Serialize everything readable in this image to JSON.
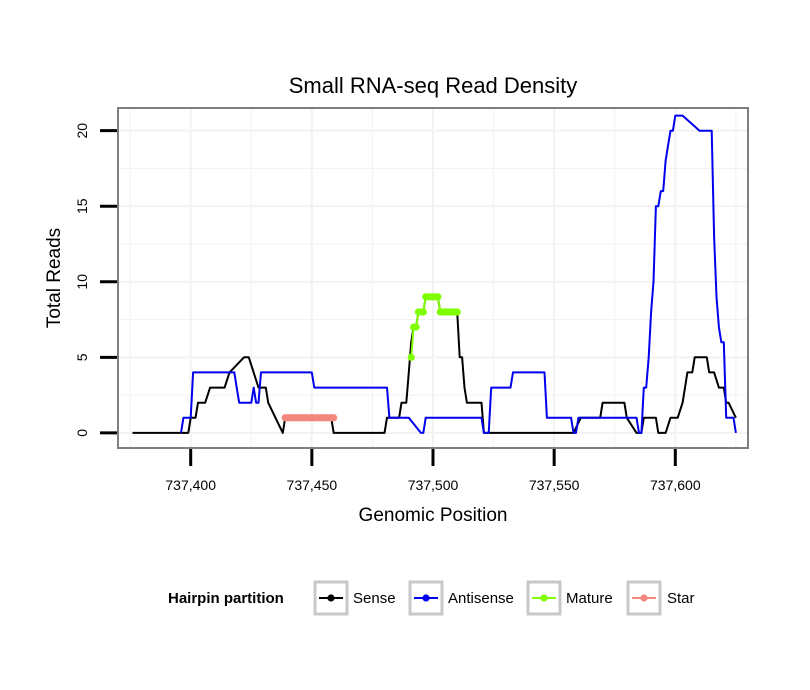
{
  "chart_data": {
    "type": "line",
    "title": "Small RNA-seq Read Density",
    "xlabel": "Genomic Position",
    "ylabel": "Total Reads",
    "xlim": [
      737370,
      737630
    ],
    "ylim": [
      -1,
      21.5
    ],
    "x_ticks": [
      737400,
      737450,
      737500,
      737550,
      737600
    ],
    "x_tick_labels": [
      "737,400",
      "737,450",
      "737,500",
      "737,550",
      "737,600"
    ],
    "y_ticks": [
      0,
      5,
      10,
      15,
      20
    ],
    "y_tick_labels": [
      "0",
      "5",
      "10",
      "15",
      "20"
    ],
    "legend": {
      "title": "Hairpin partition",
      "position": "bottom",
      "entries": [
        "Sense",
        "Antisense",
        "Mature",
        "Star"
      ]
    },
    "series": [
      {
        "name": "Sense",
        "color": "#000000",
        "style": "line",
        "x": [
          737376,
          737399,
          737400,
          737401,
          737402,
          737403,
          737405,
          737406,
          737408,
          737413,
          737414,
          737416,
          737422,
          737423,
          737424,
          737428,
          737430,
          737431,
          737432,
          737438,
          737439,
          737441,
          737448,
          737449,
          737452,
          737457,
          737458,
          737459,
          737463,
          737470,
          737475,
          737479,
          737480,
          737481,
          737484,
          737486,
          737487,
          737489,
          737490,
          737491,
          737492,
          737493,
          737494,
          737495,
          737496,
          737497,
          737498,
          737499,
          737501,
          737502,
          737503,
          737504,
          737505,
          737506,
          737507,
          737508,
          737509,
          737510,
          737511,
          737512,
          737513,
          737514,
          737515,
          737520,
          737521,
          737522,
          737523,
          737530,
          737540,
          737550,
          737556,
          737557,
          737558,
          737561,
          737562,
          737563,
          737568,
          737569,
          737570,
          737576,
          737579,
          737580,
          737584,
          737586,
          737587,
          737588,
          737592,
          737593,
          737595,
          737596,
          737598,
          737599,
          737600,
          737601,
          737603,
          737604,
          737605,
          737607,
          737608,
          737613,
          737614,
          737616,
          737618,
          737619,
          737620,
          737621,
          737622,
          737625
        ],
        "y": [
          0,
          0,
          1,
          1,
          1,
          2,
          2,
          2,
          3,
          3,
          3,
          4,
          5,
          5,
          5,
          3,
          3,
          3,
          2,
          0,
          1,
          1,
          1,
          1,
          1,
          1,
          1,
          0,
          0,
          0,
          0,
          0,
          0,
          1,
          1,
          1,
          2,
          2,
          4,
          6,
          7,
          7,
          8,
          8,
          8,
          9,
          9,
          9,
          9,
          9,
          8,
          8,
          8,
          8,
          8,
          8,
          8,
          8,
          5,
          5,
          3,
          2,
          2,
          2,
          0,
          0,
          0,
          0,
          0,
          0,
          0,
          0,
          0,
          1,
          1,
          1,
          1,
          1,
          2,
          2,
          2,
          1,
          0,
          0,
          1,
          1,
          1,
          0,
          0,
          0,
          1,
          1,
          1,
          1,
          2,
          3,
          4,
          4,
          5,
          5,
          4,
          4,
          3,
          3,
          3,
          2,
          2,
          1
        ]
      },
      {
        "name": "Antisense",
        "color": "#0000ee",
        "style": "line",
        "x": [
          737396,
          737397,
          737399,
          737400,
          737401,
          737415,
          737418,
          737419,
          737420,
          737424,
          737425,
          737426,
          737427,
          737428,
          737429,
          737450,
          737451,
          737470,
          737480,
          737481,
          737482,
          737483,
          737484,
          737485,
          737486,
          737487,
          737488,
          737489,
          737490,
          737495,
          737496,
          737497,
          737520,
          737521,
          737522,
          737523,
          737524,
          737525,
          737530,
          737532,
          737533,
          737545,
          737546,
          737547,
          737555,
          737556,
          737557,
          737558,
          737559,
          737560,
          737570,
          737580,
          737584,
          737585,
          737586,
          737587,
          737588,
          737589,
          737590,
          737591,
          737592,
          737593,
          737594,
          737595,
          737596,
          737597,
          737598,
          737599,
          737600,
          737601,
          737602,
          737603,
          737610,
          737611,
          737613,
          737614,
          737615,
          737616,
          737617,
          737618,
          737619,
          737620,
          737621,
          737622,
          737623,
          737624,
          737625
        ],
        "y": [
          0,
          1,
          1,
          1,
          4,
          4,
          4,
          3,
          2,
          2,
          2,
          3,
          2,
          2,
          4,
          4,
          3,
          3,
          3,
          3,
          1,
          1,
          1,
          1,
          1,
          1,
          1,
          1,
          1,
          0,
          0,
          1,
          1,
          0,
          0,
          0,
          3,
          3,
          3,
          3,
          4,
          4,
          4,
          1,
          1,
          1,
          1,
          0,
          0,
          1,
          1,
          1,
          1,
          0,
          0,
          3,
          3,
          5,
          8,
          10,
          15,
          15,
          16,
          16,
          18,
          19,
          20,
          20,
          21,
          21,
          21,
          21,
          20,
          20,
          20,
          20,
          20,
          13,
          9,
          7,
          6,
          6,
          1,
          1,
          1,
          1,
          0
        ]
      },
      {
        "name": "Mature",
        "color": "#7fff00",
        "style": "points",
        "x": [
          737491,
          737492,
          737493,
          737494,
          737495,
          737496,
          737497,
          737498,
          737499,
          737500,
          737501,
          737502,
          737503,
          737504,
          737505,
          737506,
          737507,
          737508,
          737509,
          737510
        ],
        "y": [
          5,
          7,
          7,
          8,
          8,
          8,
          9,
          9,
          9,
          9,
          9,
          9,
          8,
          8,
          8,
          8,
          8,
          8,
          8,
          8
        ]
      },
      {
        "name": "Star",
        "color": "#f4877d",
        "style": "points",
        "x": [
          737439,
          737440,
          737441,
          737442,
          737443,
          737444,
          737445,
          737446,
          737447,
          737448,
          737449,
          737450,
          737451,
          737452,
          737453,
          737454,
          737455,
          737456,
          737457,
          737458,
          737459
        ],
        "y": [
          1,
          1,
          1,
          1,
          1,
          1,
          1,
          1,
          1,
          1,
          1,
          1,
          1,
          1,
          1,
          1,
          1,
          1,
          1,
          1,
          1
        ]
      }
    ]
  }
}
